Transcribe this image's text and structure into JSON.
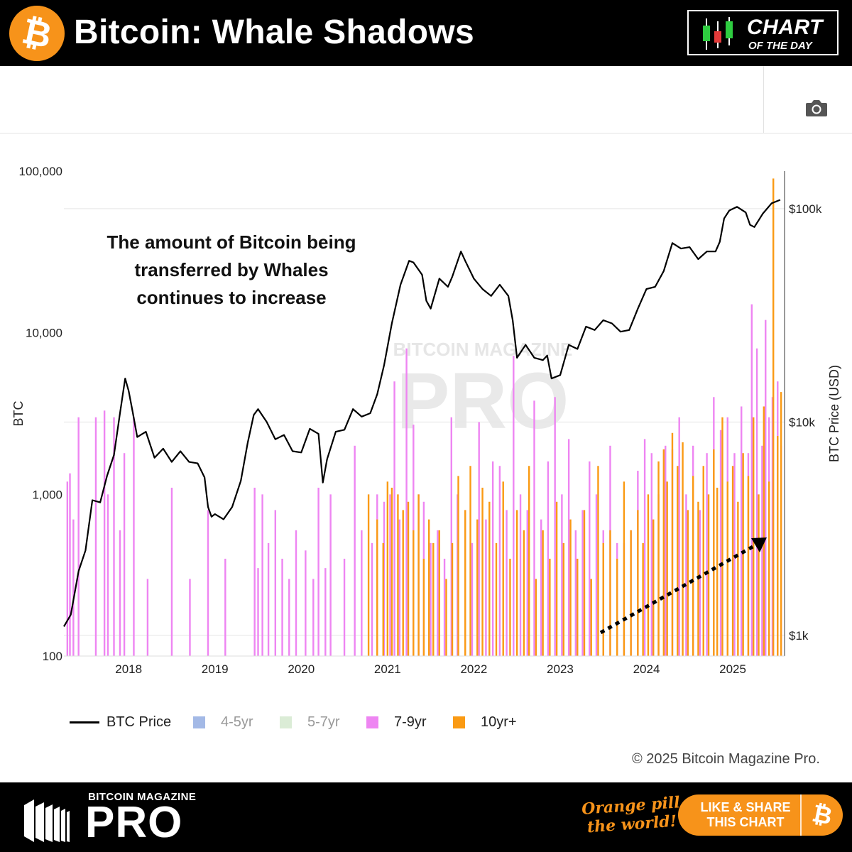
{
  "header": {
    "title": "Bitcoin: Whale Shadows",
    "coin_symbol": "₿",
    "badge_line1": "CHART",
    "badge_line2": "OF THE DAY"
  },
  "toolbar": {
    "camera_icon": "camera-icon"
  },
  "annotation": {
    "lines": [
      "The amount of Bitcoin being",
      "transferred by Whales",
      "continues to increase"
    ]
  },
  "watermark": {
    "line1": "BITCOIN MAGAZINE",
    "line2": "PRO"
  },
  "legend": {
    "items": [
      {
        "label": "BTC Price",
        "kind": "line",
        "color": "#000000"
      },
      {
        "label": "4-5yr",
        "kind": "square",
        "color": "#a3b9e6"
      },
      {
        "label": "5-7yr",
        "kind": "square",
        "color": "#dbecd6"
      },
      {
        "label": "7-9yr",
        "kind": "square",
        "color": "#ee85f2"
      },
      {
        "label": "10yr+",
        "kind": "square",
        "color": "#fa9a13"
      }
    ]
  },
  "copyright": "© 2025 Bitcoin Magazine Pro.",
  "footer": {
    "brand_small": "BITCOIN MAGAZINE",
    "brand_large": "PRO",
    "slogan_line1": "Orange pill",
    "slogan_line2": "the world!",
    "share_line1": "LIKE & SHARE",
    "share_line2": "THIS CHART",
    "share_symbol": "₿"
  },
  "colors": {
    "accent": "#f7931a",
    "price_line": "#000000",
    "bar_7_9yr": "#ee85f2",
    "bar_10yr": "#fa9a13"
  },
  "chart_data": {
    "type": "bar",
    "title": "",
    "xlabel": "",
    "ylabel": "BTC",
    "y2label": "BTC Price (USD)",
    "x_ticks": [
      "2018",
      "2019",
      "2020",
      "2021",
      "2022",
      "2023",
      "2024",
      "2025"
    ],
    "y_ticks": [
      "100",
      "1,000",
      "10,000",
      "100,000"
    ],
    "y2_ticks": [
      "$1k",
      "$10k",
      "$100k"
    ],
    "y_scale": "log",
    "y2_scale": "log",
    "ylim": [
      100,
      100000
    ],
    "y2lim": [
      800,
      150000
    ],
    "xlim": [
      2017.25,
      2025.6
    ],
    "legend_position": "bottom",
    "series": [
      {
        "name": "BTC Price",
        "type": "line",
        "axis": "right",
        "x": [
          2017.25,
          2017.33,
          2017.42,
          2017.5,
          2017.58,
          2017.67,
          2017.75,
          2017.83,
          2017.9,
          2017.96,
          2018.0,
          2018.05,
          2018.1,
          2018.2,
          2018.3,
          2018.4,
          2018.5,
          2018.6,
          2018.7,
          2018.8,
          2018.88,
          2018.92,
          2018.96,
          2019.0,
          2019.1,
          2019.2,
          2019.3,
          2019.38,
          2019.45,
          2019.5,
          2019.6,
          2019.7,
          2019.8,
          2019.9,
          2020.0,
          2020.1,
          2020.2,
          2020.25,
          2020.3,
          2020.4,
          2020.5,
          2020.6,
          2020.7,
          2020.8,
          2020.88,
          2020.96,
          2021.05,
          2021.15,
          2021.25,
          2021.3,
          2021.4,
          2021.45,
          2021.5,
          2021.6,
          2021.7,
          2021.75,
          2021.85,
          2021.9,
          2022.0,
          2022.1,
          2022.2,
          2022.3,
          2022.4,
          2022.45,
          2022.5,
          2022.6,
          2022.7,
          2022.8,
          2022.85,
          2022.9,
          2023.0,
          2023.1,
          2023.2,
          2023.3,
          2023.4,
          2023.5,
          2023.6,
          2023.7,
          2023.8,
          2023.9,
          2024.0,
          2024.1,
          2024.2,
          2024.3,
          2024.4,
          2024.5,
          2024.6,
          2024.7,
          2024.8,
          2024.85,
          2024.9,
          2024.96,
          2025.05,
          2025.15,
          2025.2,
          2025.25,
          2025.35,
          2025.45,
          2025.55
        ],
        "y": [
          1100,
          1250,
          2000,
          2500,
          4300,
          4200,
          5600,
          7000,
          11000,
          16000,
          14000,
          11000,
          8500,
          9000,
          6800,
          7500,
          6500,
          7300,
          6500,
          6400,
          5500,
          4000,
          3600,
          3700,
          3500,
          4000,
          5300,
          8000,
          10800,
          11500,
          10000,
          8300,
          8700,
          7300,
          7200,
          9300,
          8800,
          5200,
          6700,
          9000,
          9200,
          11500,
          10600,
          11000,
          13500,
          18500,
          29000,
          44000,
          57000,
          56000,
          49000,
          37000,
          34000,
          47000,
          43000,
          48000,
          63000,
          57000,
          47000,
          42000,
          39000,
          44000,
          39000,
          30000,
          20000,
          23000,
          20000,
          19500,
          20500,
          16000,
          16600,
          23000,
          22000,
          28000,
          27000,
          30000,
          29000,
          26500,
          27000,
          34000,
          42000,
          43000,
          51000,
          69000,
          65000,
          66000,
          58000,
          63000,
          63000,
          70000,
          90000,
          98000,
          102000,
          96000,
          84000,
          82000,
          95000,
          106000,
          110000
        ]
      },
      {
        "name": "4-5yr",
        "type": "bar",
        "axis": "left",
        "values": []
      },
      {
        "name": "5-7yr",
        "type": "bar",
        "axis": "left",
        "values": []
      },
      {
        "name": "7-9yr",
        "type": "bar",
        "axis": "left",
        "x": [
          2017.29,
          2017.32,
          2017.36,
          2017.42,
          2017.62,
          2017.72,
          2017.76,
          2017.83,
          2017.9,
          2017.95,
          2018.06,
          2018.22,
          2018.5,
          2018.71,
          2018.92,
          2019.12,
          2019.46,
          2019.5,
          2019.55,
          2019.62,
          2019.7,
          2019.78,
          2019.86,
          2019.94,
          2020.05,
          2020.14,
          2020.2,
          2020.28,
          2020.34,
          2020.5,
          2020.62,
          2020.7,
          2020.82,
          2020.88,
          2020.96,
          2021.03,
          2021.08,
          2021.14,
          2021.22,
          2021.3,
          2021.36,
          2021.42,
          2021.5,
          2021.58,
          2021.66,
          2021.74,
          2021.81,
          2021.9,
          2021.98,
          2022.06,
          2022.14,
          2022.22,
          2022.3,
          2022.38,
          2022.46,
          2022.54,
          2022.62,
          2022.7,
          2022.78,
          2022.86,
          2022.94,
          2023.02,
          2023.1,
          2023.18,
          2023.26,
          2023.34,
          2023.42,
          2023.5,
          2023.58,
          2023.66,
          2023.74,
          2023.82,
          2023.9,
          2023.98,
          2024.06,
          2024.14,
          2024.22,
          2024.3,
          2024.38,
          2024.46,
          2024.54,
          2024.62,
          2024.7,
          2024.78,
          2024.86,
          2024.94,
          2025.02,
          2025.1,
          2025.18,
          2025.22,
          2025.28,
          2025.34,
          2025.38,
          2025.42,
          2025.46,
          2025.52,
          2025.56
        ],
        "values": [
          1200,
          1350,
          700,
          3000,
          3000,
          3300,
          1000,
          3000,
          600,
          1800,
          3000,
          300,
          1100,
          300,
          800,
          400,
          1100,
          350,
          1000,
          500,
          800,
          400,
          300,
          600,
          450,
          300,
          1100,
          350,
          1000,
          400,
          2000,
          600,
          500,
          1000,
          900,
          1000,
          5000,
          700,
          8000,
          2700,
          1000,
          900,
          500,
          600,
          400,
          3000,
          1000,
          800,
          500,
          2800,
          700,
          1600,
          1500,
          800,
          7200,
          1000,
          800,
          3800,
          700,
          1600,
          4000,
          1000,
          2200,
          600,
          800,
          1600,
          1000,
          600,
          2000,
          500,
          500,
          600,
          1400,
          2200,
          1800,
          1000,
          2000,
          1900,
          3000,
          1000,
          2000,
          800,
          1800,
          4000,
          2500,
          3000,
          1800,
          3500,
          1800,
          15000,
          8000,
          2000,
          12000,
          3000,
          4000,
          5000,
          2000
        ]
      },
      {
        "name": "10yr+",
        "type": "bar",
        "axis": "left",
        "x": [
          2020.78,
          2020.88,
          2020.95,
          2021.0,
          2021.05,
          2021.12,
          2021.18,
          2021.24,
          2021.3,
          2021.36,
          2021.42,
          2021.48,
          2021.53,
          2021.6,
          2021.68,
          2021.75,
          2021.82,
          2021.9,
          2021.96,
          2022.04,
          2022.1,
          2022.18,
          2022.26,
          2022.34,
          2022.42,
          2022.5,
          2022.58,
          2022.64,
          2022.72,
          2022.8,
          2022.88,
          2022.96,
          2023.04,
          2023.12,
          2023.2,
          2023.28,
          2023.36,
          2023.44,
          2023.5,
          2023.58,
          2023.66,
          2023.74,
          2023.82,
          2023.9,
          2023.96,
          2024.02,
          2024.08,
          2024.14,
          2024.2,
          2024.24,
          2024.3,
          2024.36,
          2024.42,
          2024.48,
          2024.54,
          2024.6,
          2024.66,
          2024.72,
          2024.78,
          2024.82,
          2024.88,
          2024.94,
          2025.0,
          2025.06,
          2025.12,
          2025.18,
          2025.24,
          2025.3,
          2025.36,
          2025.42,
          2025.47,
          2025.52,
          2025.56
        ],
        "values": [
          1000,
          700,
          500,
          1200,
          1100,
          1000,
          800,
          900,
          600,
          1000,
          400,
          700,
          500,
          600,
          300,
          500,
          1300,
          800,
          1500,
          700,
          1100,
          900,
          500,
          1200,
          400,
          800,
          600,
          1500,
          300,
          600,
          400,
          900,
          500,
          700,
          400,
          800,
          300,
          1500,
          500,
          600,
          400,
          1200,
          600,
          800,
          500,
          1000,
          700,
          1600,
          1900,
          1200,
          2400,
          1500,
          2100,
          800,
          1300,
          900,
          1500,
          1000,
          1900,
          1100,
          3000,
          1200,
          1500,
          900,
          1800,
          1300,
          3000,
          1000,
          3500,
          1200,
          90000,
          2300,
          4300
        ]
      }
    ]
  }
}
